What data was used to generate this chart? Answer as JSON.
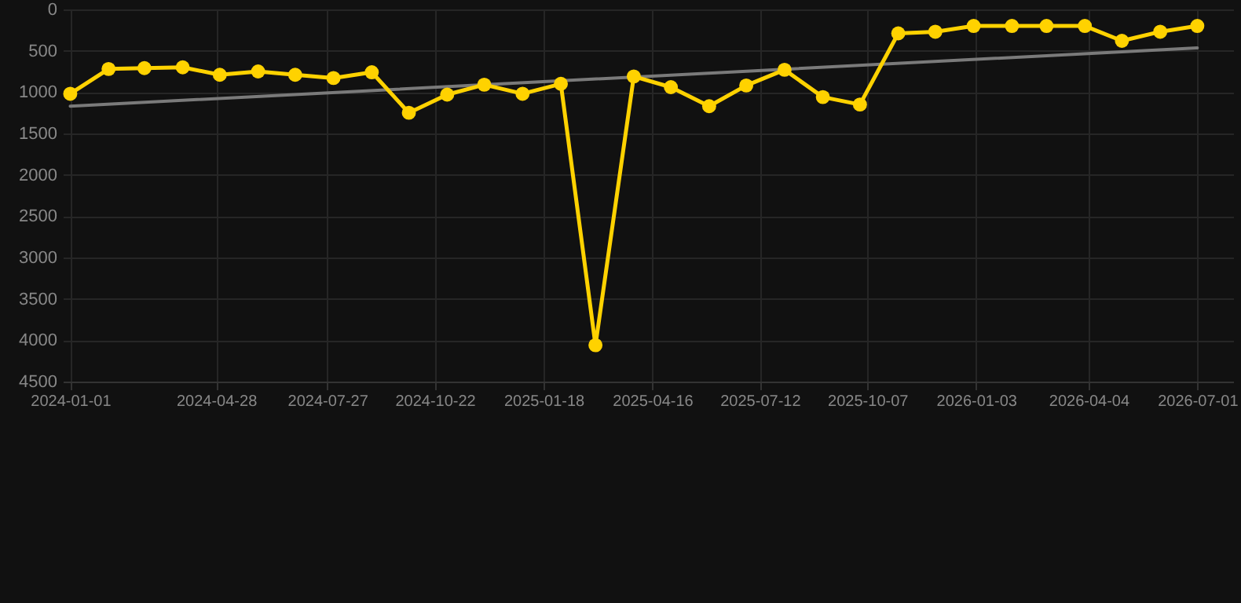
{
  "chart_data": {
    "type": "line",
    "x": [
      "2024-01-01",
      "2024-02-01",
      "2024-03-01",
      "2024-04-01",
      "2024-05-01",
      "2024-06-01",
      "2024-07-01",
      "2024-08-01",
      "2024-09-01",
      "2024-10-01",
      "2024-11-01",
      "2024-12-01",
      "2025-01-01",
      "2025-02-01",
      "2025-03-01",
      "2025-04-01",
      "2025-05-01",
      "2025-06-01",
      "2025-07-01",
      "2025-08-01",
      "2025-09-01",
      "2025-10-01",
      "2025-11-01",
      "2025-12-01",
      "2026-01-01",
      "2026-02-01",
      "2026-03-01",
      "2026-04-01",
      "2026-05-01",
      "2026-06-01",
      "2026-07-01"
    ],
    "series": [
      {
        "type": "line",
        "color": "#7a7a7a",
        "x": [
          "2024-01-01",
          "2026-07-01"
        ],
        "values": [
          1170,
          465
        ],
        "marker": "none"
      },
      {
        "color": "#ffd200",
        "values": [
          1020,
          720,
          710,
          700,
          790,
          750,
          790,
          830,
          760,
          1250,
          1030,
          910,
          1020,
          900,
          4060,
          810,
          940,
          1170,
          920,
          730,
          1060,
          1150,
          290,
          270,
          200,
          200,
          200,
          200,
          380,
          270,
          200
        ],
        "marker": "circle"
      }
    ],
    "xlim": [
      "2023-12-26",
      "2026-07-30"
    ],
    "xticks": [
      "2024-01-01",
      "2024-04-28",
      "2024-07-27",
      "2024-10-22",
      "2025-01-18",
      "2025-04-16",
      "2025-07-12",
      "2025-10-07",
      "2026-01-03",
      "2026-04-04",
      "2026-07-01"
    ],
    "ylim": [
      4500,
      0
    ],
    "yticks": [
      0,
      500,
      1000,
      1500,
      2000,
      2500,
      3000,
      3500,
      4000,
      4500
    ],
    "grid": true,
    "line_style": "solid"
  }
}
